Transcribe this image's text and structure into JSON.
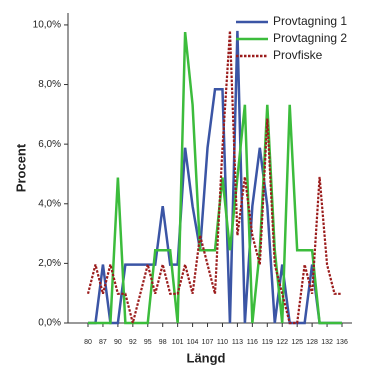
{
  "chart_data": {
    "type": "line",
    "x_label": "Längd",
    "y_label": "Procent",
    "categories": [
      "80",
      null,
      "87",
      null,
      "90",
      null,
      "92",
      null,
      "95",
      null,
      "98",
      null,
      "101",
      null,
      "104",
      null,
      "107",
      null,
      "110",
      null,
      "113",
      null,
      "116",
      null,
      "119",
      null,
      "122",
      null,
      "125",
      null,
      "128",
      null,
      "132",
      null,
      "136"
    ],
    "series": [
      {
        "name": "Provtagning 1",
        "color": "#3b55a5",
        "style": "solid",
        "values": [
          0,
          0,
          1.96,
          0,
          0,
          1.96,
          1.96,
          1.96,
          1.96,
          1.96,
          3.92,
          1.96,
          1.96,
          5.88,
          3.92,
          2.45,
          5.88,
          7.84,
          7.84,
          0,
          9.8,
          0,
          3.92,
          5.88,
          3.92,
          0,
          1.96,
          0,
          0,
          0,
          1.96,
          0,
          0,
          0,
          0
        ]
      },
      {
        "name": "Provtagning 2",
        "color": "#3cbc3c",
        "style": "solid",
        "values": [
          0,
          0,
          0,
          0,
          4.88,
          0,
          0,
          0,
          0,
          2.44,
          2.44,
          2.44,
          0,
          9.76,
          7.32,
          2.44,
          2.44,
          2.44,
          4.88,
          2.44,
          4.88,
          7.32,
          0,
          2.44,
          7.32,
          2.44,
          0,
          7.32,
          2.44,
          2.44,
          2.44,
          0,
          0,
          0,
          0
        ]
      },
      {
        "name": "Provfiske",
        "color": "#9b1c1c",
        "style": "dotted",
        "values": [
          0.98,
          1.96,
          0.98,
          1.96,
          0.98,
          0.98,
          0,
          0.98,
          1.96,
          0.98,
          1.96,
          0.98,
          0.98,
          1.96,
          0.98,
          2.94,
          1.96,
          0.98,
          5.88,
          9.8,
          2.94,
          4.9,
          2.94,
          1.96,
          6.86,
          1.96,
          0.98,
          0,
          0,
          1.96,
          0.98,
          4.9,
          1.96,
          0.98,
          0.98
        ]
      }
    ],
    "ylim": [
      0,
      10.4
    ],
    "yticks": [
      {
        "value": 0,
        "label": "0,0%"
      },
      {
        "value": 2,
        "label": "2,0%"
      },
      {
        "value": 4,
        "label": "4,0%"
      },
      {
        "value": 6,
        "label": "6,0%"
      },
      {
        "value": 8,
        "label": "8,0%"
      },
      {
        "value": 10,
        "label": "10,0%"
      }
    ],
    "legend": "top-right"
  }
}
